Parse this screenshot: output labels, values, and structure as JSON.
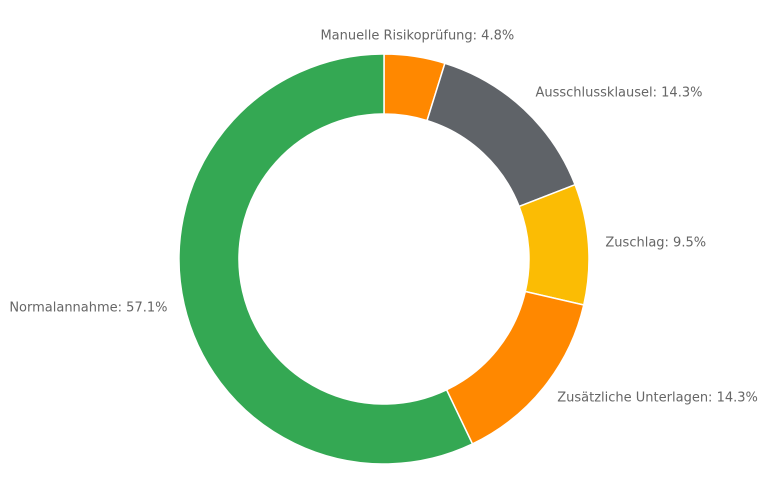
{
  "chart_data": {
    "type": "pie",
    "donut": true,
    "title": "",
    "slices": [
      {
        "label": "Manuelle Risikoprüfung: 4.8%",
        "value": 4.8,
        "color": "#ff8800"
      },
      {
        "label": "Ausschlussklausel: 14.3%",
        "value": 14.3,
        "color": "#5f6368"
      },
      {
        "label": "Zuschlag: 9.5%",
        "value": 9.5,
        "color": "#fbbc04"
      },
      {
        "label": "Zusätzliche Unterlagen: 14.3%",
        "value": 14.3,
        "color": "#ff8800"
      },
      {
        "label": "Normalannahme: 57.1%",
        "value": 57.1,
        "color": "#34a853"
      }
    ],
    "legend": "none",
    "grid": false
  }
}
